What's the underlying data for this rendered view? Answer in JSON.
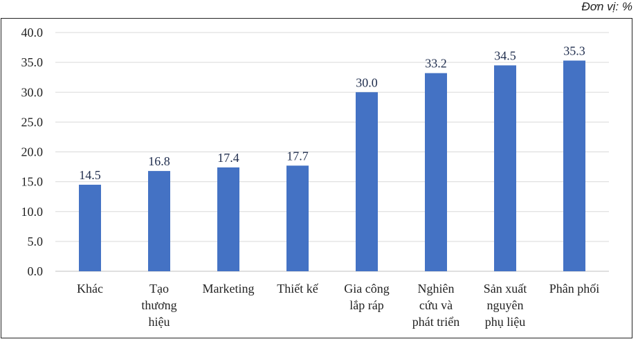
{
  "unit_label": "Đơn vị: %",
  "colors": {
    "bar": "#4472c4",
    "grid": "#d9d9d9",
    "frame": "#222222"
  },
  "chart_data": {
    "type": "bar",
    "categories": [
      [
        "Khác"
      ],
      [
        "Tạo",
        "thương",
        "hiệu"
      ],
      [
        "Marketing"
      ],
      [
        "Thiết kế"
      ],
      [
        "Gia công",
        "lắp ráp"
      ],
      [
        "Nghiên",
        "cứu và",
        "phát triển"
      ],
      [
        "Sản xuất",
        "nguyên",
        "phụ liệu"
      ],
      [
        "Phân phối"
      ]
    ],
    "values": [
      14.5,
      16.8,
      17.4,
      17.7,
      30.0,
      33.2,
      34.5,
      35.3
    ],
    "value_labels": [
      "14.5",
      "16.8",
      "17.4",
      "17.7",
      "30.0",
      "33.2",
      "34.5",
      "35.3"
    ],
    "ylim": [
      0,
      40
    ],
    "yticks": [
      "0.0",
      "5.0",
      "10.0",
      "15.0",
      "20.0",
      "25.0",
      "30.0",
      "35.0",
      "40.0"
    ],
    "grid": true,
    "title": "",
    "xlabel": "",
    "ylabel": ""
  }
}
